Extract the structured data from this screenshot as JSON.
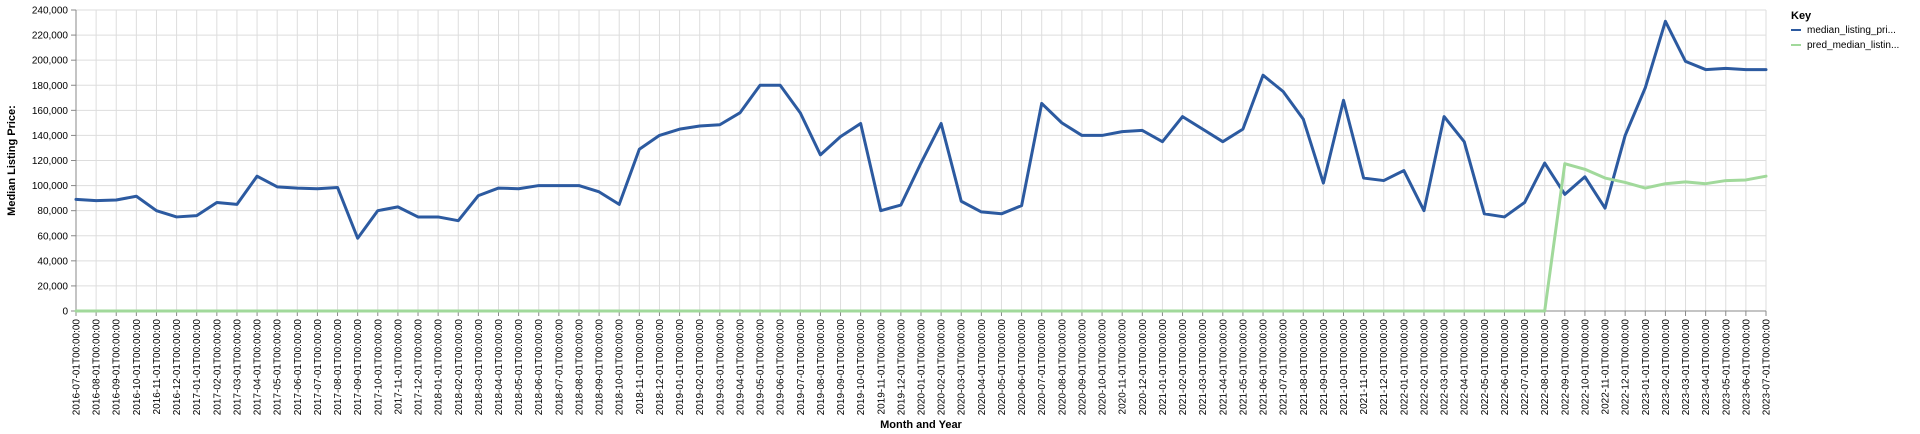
{
  "chart_data": {
    "type": "line",
    "xlabel": "Month and Year",
    "ylabel": "Median Listing Price:",
    "ylim": [
      0,
      240000
    ],
    "yticks": [
      "0",
      "20,000",
      "40,000",
      "60,000",
      "80,000",
      "100,000",
      "120,000",
      "140,000",
      "160,000",
      "180,000",
      "200,000",
      "220,000",
      "240,000"
    ],
    "grid": true,
    "legend": {
      "title": "Key",
      "position": "top-right"
    },
    "x": [
      "2016-07-01T00:00:00",
      "2016-08-01T00:00:00",
      "2016-09-01T00:00:00",
      "2016-10-01T00:00:00",
      "2016-11-01T00:00:00",
      "2016-12-01T00:00:00",
      "2017-01-01T00:00:00",
      "2017-02-01T00:00:00",
      "2017-03-01T00:00:00",
      "2017-04-01T00:00:00",
      "2017-05-01T00:00:00",
      "2017-06-01T00:00:00",
      "2017-07-01T00:00:00",
      "2017-08-01T00:00:00",
      "2017-09-01T00:00:00",
      "2017-10-01T00:00:00",
      "2017-11-01T00:00:00",
      "2017-12-01T00:00:00",
      "2018-01-01T00:00:00",
      "2018-02-01T00:00:00",
      "2018-03-01T00:00:00",
      "2018-04-01T00:00:00",
      "2018-05-01T00:00:00",
      "2018-06-01T00:00:00",
      "2018-07-01T00:00:00",
      "2018-08-01T00:00:00",
      "2018-09-01T00:00:00",
      "2018-10-01T00:00:00",
      "2018-11-01T00:00:00",
      "2018-12-01T00:00:00",
      "2019-01-01T00:00:00",
      "2019-02-01T00:00:00",
      "2019-03-01T00:00:00",
      "2019-04-01T00:00:00",
      "2019-05-01T00:00:00",
      "2019-06-01T00:00:00",
      "2019-07-01T00:00:00",
      "2019-08-01T00:00:00",
      "2019-09-01T00:00:00",
      "2019-10-01T00:00:00",
      "2019-11-01T00:00:00",
      "2019-12-01T00:00:00",
      "2020-01-01T00:00:00",
      "2020-02-01T00:00:00",
      "2020-03-01T00:00:00",
      "2020-04-01T00:00:00",
      "2020-05-01T00:00:00",
      "2020-06-01T00:00:00",
      "2020-07-01T00:00:00",
      "2020-08-01T00:00:00",
      "2020-09-01T00:00:00",
      "2020-10-01T00:00:00",
      "2020-11-01T00:00:00",
      "2020-12-01T00:00:00",
      "2021-01-01T00:00:00",
      "2021-02-01T00:00:00",
      "2021-03-01T00:00:00",
      "2021-04-01T00:00:00",
      "2021-05-01T00:00:00",
      "2021-06-01T00:00:00",
      "2021-07-01T00:00:00",
      "2021-08-01T00:00:00",
      "2021-09-01T00:00:00",
      "2021-10-01T00:00:00",
      "2021-11-01T00:00:00",
      "2021-12-01T00:00:00",
      "2022-01-01T00:00:00",
      "2022-02-01T00:00:00",
      "2022-03-01T00:00:00",
      "2022-04-01T00:00:00",
      "2022-05-01T00:00:00",
      "2022-06-01T00:00:00",
      "2022-07-01T00:00:00",
      "2022-08-01T00:00:00",
      "2022-09-01T00:00:00",
      "2022-10-01T00:00:00",
      "2022-11-01T00:00:00",
      "2022-12-01T00:00:00",
      "2023-01-01T00:00:00",
      "2023-02-01T00:00:00",
      "2023-03-01T00:00:00",
      "2023-04-01T00:00:00",
      "2023-05-01T00:00:00",
      "2023-06-01T00:00:00",
      "2023-07-01T00:00:00"
    ],
    "series": [
      {
        "name": "median_listing_pri...",
        "color": "#2c5aa0",
        "values": [
          89000,
          88000,
          88500,
          91500,
          80000,
          75000,
          76000,
          86500,
          85000,
          107500,
          99000,
          98000,
          97500,
          98500,
          58000,
          80000,
          83000,
          75000,
          75000,
          72000,
          92000,
          98000,
          97500,
          100000,
          100000,
          100000,
          95000,
          85000,
          129000,
          140000,
          145000,
          147500,
          148500,
          158000,
          180000,
          180000,
          158000,
          124500,
          139000,
          149500,
          80000,
          84500,
          118000,
          149500,
          87500,
          79000,
          77500,
          84000,
          165500,
          150000,
          140000,
          140000,
          143000,
          144000,
          135000,
          155000,
          145000,
          135000,
          145000,
          188000,
          175000,
          153000,
          102000,
          168000,
          106000,
          104000,
          112000,
          80000,
          155000,
          135000,
          77500,
          75000,
          86500,
          118000,
          93000,
          107000,
          82000,
          140000,
          178000,
          231000,
          199000,
          192500,
          193500,
          192500,
          192500
        ]
      },
      {
        "name": "pred_median_listin...",
        "color": "#a1d99b",
        "values": [
          0,
          0,
          0,
          0,
          0,
          0,
          0,
          0,
          0,
          0,
          0,
          0,
          0,
          0,
          0,
          0,
          0,
          0,
          0,
          0,
          0,
          0,
          0,
          0,
          0,
          0,
          0,
          0,
          0,
          0,
          0,
          0,
          0,
          0,
          0,
          0,
          0,
          0,
          0,
          0,
          0,
          0,
          0,
          0,
          0,
          0,
          0,
          0,
          0,
          0,
          0,
          0,
          0,
          0,
          0,
          0,
          0,
          0,
          0,
          0,
          0,
          0,
          0,
          0,
          0,
          0,
          0,
          0,
          0,
          0,
          0,
          0,
          0,
          0,
          117500,
          113000,
          106000,
          102500,
          98000,
          101500,
          103000,
          101500,
          104000,
          104500,
          107500
        ]
      }
    ]
  }
}
